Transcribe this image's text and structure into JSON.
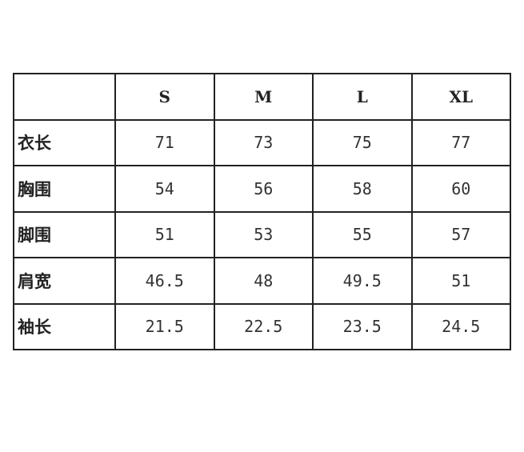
{
  "table": {
    "headers": [
      "",
      "S",
      "M",
      "L",
      "XL"
    ],
    "rows": [
      {
        "label": "衣长",
        "values": [
          "71",
          "73",
          "75",
          "77"
        ]
      },
      {
        "label": "胸围",
        "values": [
          "54",
          "56",
          "58",
          "60"
        ]
      },
      {
        "label": "脚围",
        "values": [
          "51",
          "53",
          "55",
          "57"
        ]
      },
      {
        "label": "肩宽",
        "values": [
          "46.5",
          "48",
          "49.5",
          "51"
        ]
      },
      {
        "label": "袖长",
        "values": [
          "21.5",
          "22.5",
          "23.5",
          "24.5"
        ]
      }
    ]
  }
}
